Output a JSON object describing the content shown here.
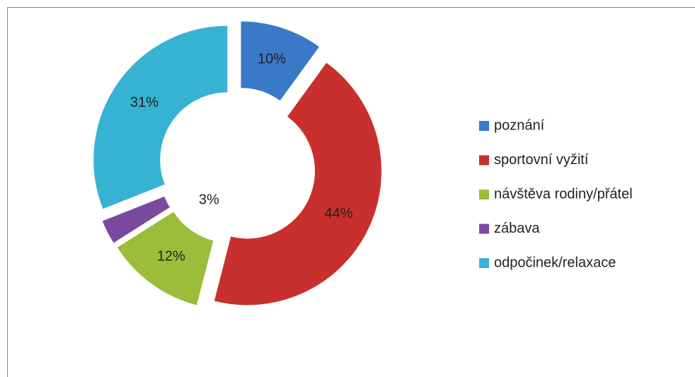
{
  "chart_data": {
    "type": "pie",
    "donut": true,
    "categories": [
      "poznání",
      "sportovní vyžití",
      "návštěva rodiny/přátel",
      "zábava",
      "odpočinek/relaxace"
    ],
    "values": [
      10,
      44,
      12,
      3,
      31
    ],
    "value_labels": [
      "10%",
      "44%",
      "12%",
      "3%",
      "31%"
    ],
    "colors": [
      "#3a78c8",
      "#c7302c",
      "#9cbc3a",
      "#7a4aa0",
      "#38b2d2"
    ],
    "legend": "right"
  }
}
